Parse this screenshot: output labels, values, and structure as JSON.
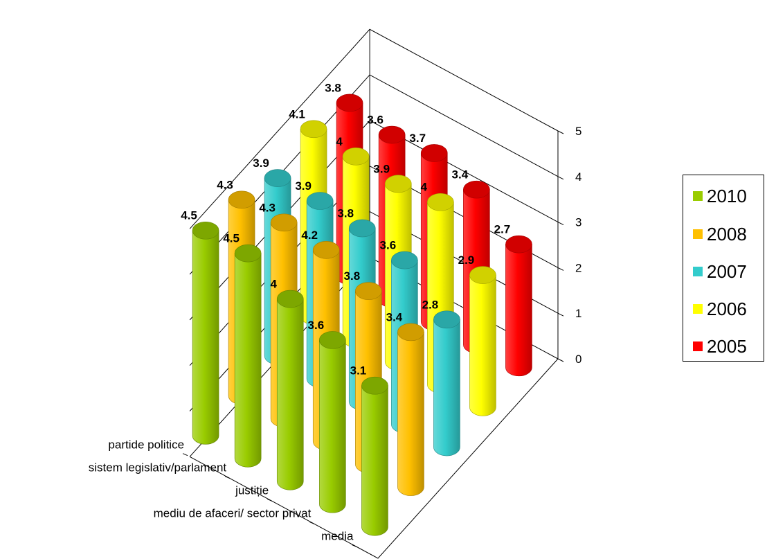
{
  "chart_data": {
    "type": "bar",
    "subtype": "3d-cylinder",
    "categories": [
      "partide politice",
      "sistem legislativ/parlament",
      "justiție",
      "mediu de afaceri/ sector privat",
      "media"
    ],
    "series": [
      {
        "name": "2010",
        "color": "#99cc00",
        "values": [
          4.5,
          4.5,
          4,
          3.6,
          3.1
        ]
      },
      {
        "name": "2008",
        "color": "#ffc000",
        "values": [
          4.3,
          4.3,
          4.2,
          3.8,
          3.4
        ]
      },
      {
        "name": "2007",
        "color": "#33cccc",
        "values": [
          3.9,
          3.9,
          3.8,
          3.6,
          2.8
        ]
      },
      {
        "name": "2006",
        "color": "#ffff00",
        "values": [
          4.1,
          4,
          3.9,
          4,
          2.9
        ]
      },
      {
        "name": "2005",
        "color": "#ff0000",
        "values": [
          3.8,
          3.6,
          3.7,
          3.4,
          2.7
        ]
      }
    ],
    "zlim": [
      0,
      5
    ],
    "ticks": [
      "0",
      "1",
      "2",
      "3",
      "4",
      "5"
    ],
    "legend_position": "right",
    "grid": true
  }
}
